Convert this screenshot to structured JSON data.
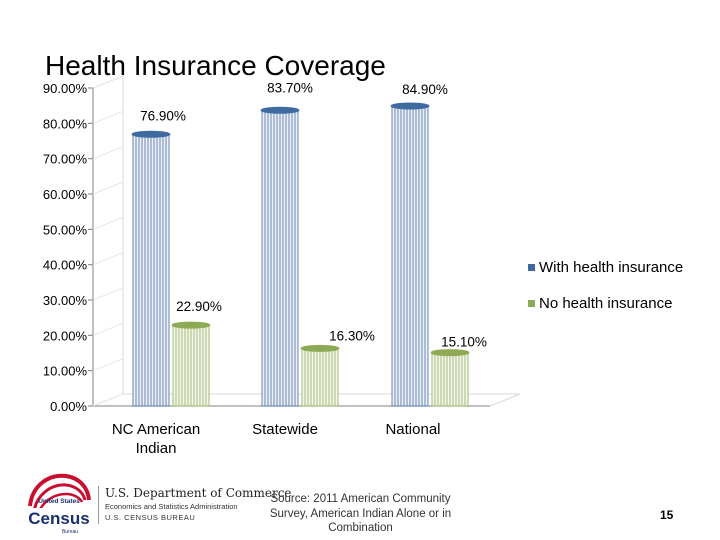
{
  "slide": {
    "title": "Health Insurance Coverage",
    "page_number": "15"
  },
  "footer": {
    "census_logo_text": "United States Census Bureau",
    "dept_name": "U.S. Department of Commerce",
    "dept_sub": "Economics and Statistics Administration",
    "bureau": "U.S. CENSUS BUREAU",
    "source": "Source: 2011 American Community Survey, American Indian Alone or in Combination"
  },
  "chart_data": {
    "type": "bar",
    "title": "Health Insurance Coverage",
    "categories": [
      "NC American Indian",
      "Statewide",
      "National"
    ],
    "category_lines": [
      [
        "NC American",
        "Indian"
      ],
      [
        "Statewide"
      ],
      [
        "National"
      ]
    ],
    "series": [
      {
        "name": "With health insurance",
        "values": [
          76.9,
          83.7,
          84.9
        ],
        "labels": [
          "76.90%",
          "83.70%",
          "84.90%"
        ],
        "color": "#3f6aa0",
        "fill": "#eef0f8"
      },
      {
        "name": "No health insurance",
        "values": [
          22.9,
          16.3,
          15.1
        ],
        "labels": [
          "22.90%",
          "16.30%",
          "15.10%"
        ],
        "color": "#8eaa55",
        "fill": "#f3f6ec"
      }
    ],
    "y_ticks": [
      "0.00%",
      "10.00%",
      "20.00%",
      "30.00%",
      "40.00%",
      "50.00%",
      "60.00%",
      "70.00%",
      "80.00%",
      "90.00%"
    ],
    "ylim": [
      0,
      90
    ],
    "xlabel": "",
    "ylabel": "",
    "legend_position": "right"
  }
}
